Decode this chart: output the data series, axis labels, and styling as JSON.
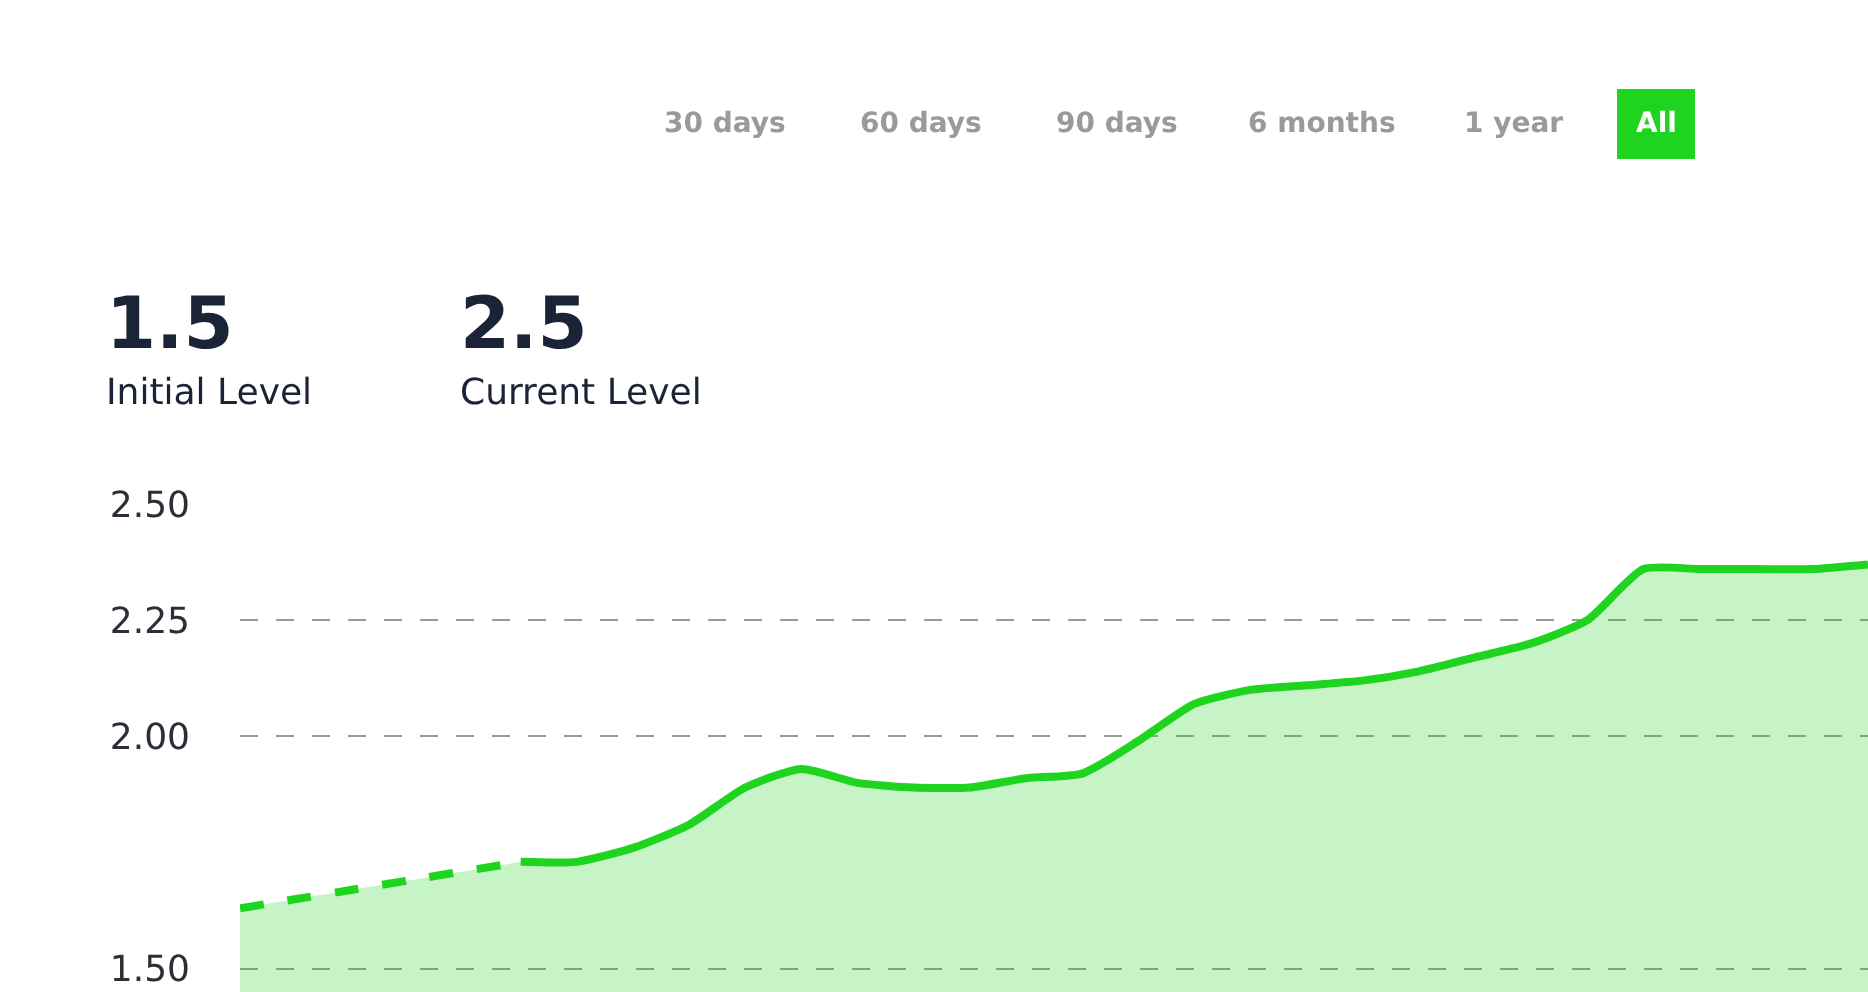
{
  "chart_data": {
    "type": "area",
    "categories": [
      null,
      null,
      null,
      null,
      null,
      null,
      null,
      null,
      null,
      null,
      null,
      null,
      null,
      null,
      null,
      null,
      null,
      null,
      null,
      null,
      null,
      null,
      null,
      null,
      null,
      null,
      null,
      null,
      null,
      null
    ],
    "series": [
      {
        "color": "#1ed41e",
        "line_style": "dashed",
        "values": [
          1.63,
          1.65,
          1.67,
          1.69,
          1.71,
          1.73,
          null,
          null,
          null,
          null,
          null,
          null,
          null,
          null,
          null,
          null,
          null,
          null,
          null,
          null,
          null,
          null,
          null,
          null,
          null,
          null,
          null,
          null,
          null,
          null
        ]
      },
      {
        "color": "#1ed41e",
        "line_style": "solid",
        "values": [
          null,
          null,
          null,
          null,
          null,
          1.73,
          1.73,
          1.76,
          1.81,
          1.89,
          1.93,
          1.9,
          1.89,
          1.89,
          1.91,
          1.92,
          1.99,
          2.07,
          2.1,
          2.11,
          2.12,
          2.14,
          2.17,
          2.2,
          2.25,
          2.36,
          2.36,
          2.36,
          2.36,
          2.37
        ]
      }
    ],
    "ylim": [
      1.45,
      2.5
    ],
    "yticks": [
      {
        "value": 1.5,
        "label": "1.50"
      },
      {
        "value": 2.0,
        "label": "2.00"
      },
      2.25,
      {
        "value": 2.5,
        "label": "2.50"
      }
    ],
    "grid": "y",
    "tick_labels": "y",
    "legend": false,
    "annotations": [
      "30 days",
      "60 days",
      "90 days",
      "6 months",
      "1 year",
      "All",
      "1.5",
      "Initial Level",
      "2.5",
      "Current Level"
    ]
  }
}
